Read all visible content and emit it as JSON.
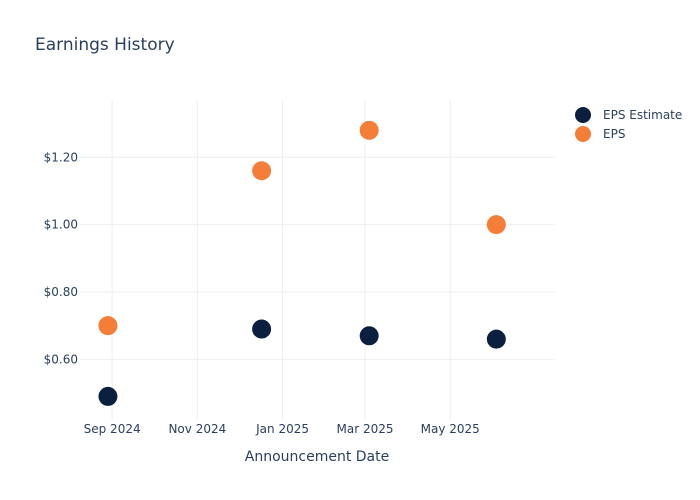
{
  "chart_data": {
    "type": "scatter",
    "title": "Earnings History",
    "xlabel": "Announcement Date",
    "ylabel": "",
    "x_tick_labels": [
      "Sep 2024",
      "Nov 2024",
      "Jan 2025",
      "Mar 2025",
      "May 2025"
    ],
    "x_ticks": [
      "2024-09-01",
      "2024-11-01",
      "2025-01-01",
      "2025-03-01",
      "2025-05-01"
    ],
    "xlim": [
      "2024-08-09",
      "2025-07-15"
    ],
    "y_tick_labels": [
      "$0.60",
      "$0.80",
      "$1.00",
      "$1.20"
    ],
    "y_ticks": [
      0.6,
      0.8,
      1.0,
      1.2
    ],
    "ylim": [
      0.42,
      1.37
    ],
    "grid": true,
    "legend_position": "top-right",
    "series": [
      {
        "name": "EPS Estimate",
        "color": "#0b1f3f",
        "points": [
          {
            "x": "2024-08-29",
            "y": 0.49
          },
          {
            "x": "2024-12-17",
            "y": 0.69
          },
          {
            "x": "2025-03-04",
            "y": 0.67
          },
          {
            "x": "2025-06-03",
            "y": 0.66
          }
        ]
      },
      {
        "name": "EPS",
        "color": "#f47e37",
        "points": [
          {
            "x": "2024-08-29",
            "y": 0.7
          },
          {
            "x": "2024-12-17",
            "y": 1.16
          },
          {
            "x": "2025-03-04",
            "y": 1.28
          },
          {
            "x": "2025-06-03",
            "y": 1.0
          }
        ]
      }
    ]
  }
}
